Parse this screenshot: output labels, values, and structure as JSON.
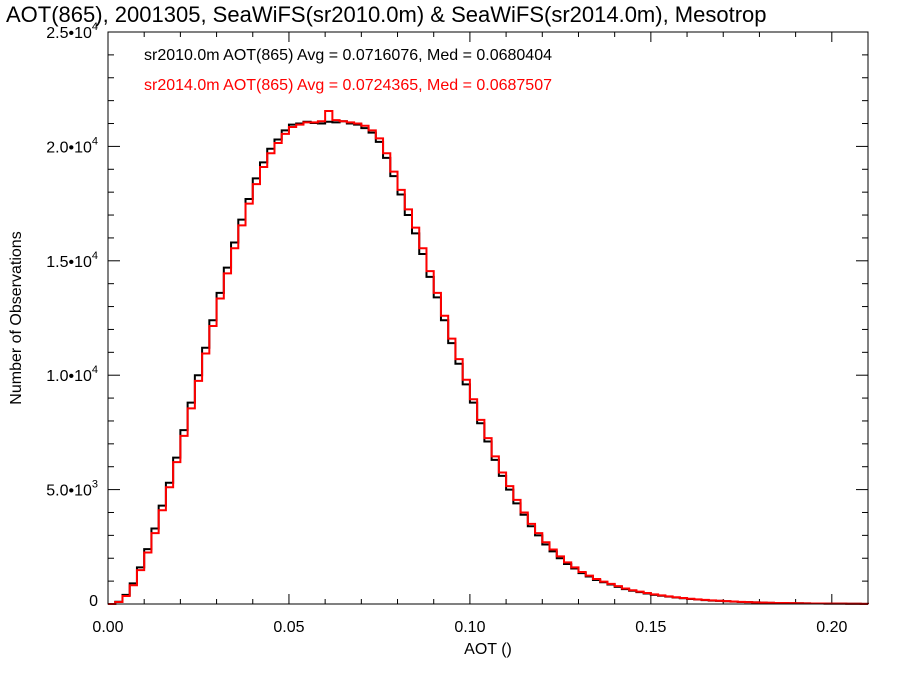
{
  "chart_data": {
    "type": "line",
    "title": "AOT(865), 2001305, SeaWiFS(sr2010.0m) & SeaWiFS(sr2014.0m), Mesotrop",
    "xlabel": "AOT ()",
    "ylabel": "Number of Observations",
    "xlim": [
      0.0,
      0.21
    ],
    "ylim": [
      0,
      25000
    ],
    "xticks": [
      0.0,
      0.05,
      0.1,
      0.15,
      0.2
    ],
    "xtick_labels": [
      "0.00",
      "0.05",
      "0.10",
      "0.15",
      "0.20"
    ],
    "yticks": [
      0,
      5000,
      10000,
      15000,
      20000,
      25000
    ],
    "ytick_labels": [
      {
        "mantissa": "0",
        "exponent": ""
      },
      {
        "mantissa": "5.0•10",
        "exponent": "3"
      },
      {
        "mantissa": "1.0•10",
        "exponent": "4"
      },
      {
        "mantissa": "1.5•10",
        "exponent": "4"
      },
      {
        "mantissa": "2.0•10",
        "exponent": "4"
      },
      {
        "mantissa": "2.5•10",
        "exponent": "4"
      }
    ],
    "grid": false,
    "annotations": [
      "sr2010.0m AOT(865) Avg = 0.0716076, Med = 0.0680404",
      "sr2014.0m AOT(865) Avg = 0.0724365, Med = 0.0687507"
    ],
    "series": [
      {
        "color": "#000000",
        "x": [
          0.0,
          0.002,
          0.004,
          0.006,
          0.008,
          0.01,
          0.012,
          0.014,
          0.016,
          0.018,
          0.02,
          0.022,
          0.024,
          0.026,
          0.028,
          0.03,
          0.032,
          0.034,
          0.036,
          0.038,
          0.04,
          0.042,
          0.044,
          0.046,
          0.048,
          0.05,
          0.052,
          0.054,
          0.056,
          0.058,
          0.06,
          0.062,
          0.064,
          0.066,
          0.068,
          0.07,
          0.072,
          0.074,
          0.076,
          0.078,
          0.08,
          0.082,
          0.084,
          0.086,
          0.088,
          0.09,
          0.092,
          0.094,
          0.096,
          0.098,
          0.1,
          0.102,
          0.104,
          0.106,
          0.108,
          0.11,
          0.112,
          0.114,
          0.116,
          0.118,
          0.12,
          0.122,
          0.124,
          0.126,
          0.128,
          0.13,
          0.132,
          0.134,
          0.136,
          0.138,
          0.14,
          0.142,
          0.144,
          0.146,
          0.148,
          0.15,
          0.152,
          0.154,
          0.156,
          0.158,
          0.16,
          0.162,
          0.164,
          0.166,
          0.168,
          0.17,
          0.172,
          0.174,
          0.176,
          0.178,
          0.18,
          0.182,
          0.184,
          0.186,
          0.188,
          0.19,
          0.192,
          0.194,
          0.196,
          0.198,
          0.2,
          0.202,
          0.204,
          0.206,
          0.208,
          0.21
        ],
        "values": [
          0,
          100,
          400,
          900,
          1600,
          2400,
          3300,
          4300,
          5300,
          6400,
          7600,
          8800,
          10000,
          11200,
          12400,
          13600,
          14700,
          15800,
          16800,
          17700,
          18600,
          19300,
          19900,
          20300,
          20700,
          20950,
          21000,
          21080,
          21020,
          21000,
          21080,
          21050,
          21100,
          21000,
          20950,
          20800,
          20600,
          20200,
          19500,
          18700,
          17900,
          17000,
          16200,
          15300,
          14300,
          13400,
          12400,
          11400,
          10500,
          9600,
          8800,
          7900,
          7100,
          6300,
          5600,
          5000,
          4400,
          3900,
          3400,
          3000,
          2600,
          2300,
          2000,
          1750,
          1550,
          1350,
          1200,
          1050,
          950,
          850,
          750,
          650,
          580,
          520,
          460,
          400,
          360,
          320,
          285,
          250,
          220,
          195,
          170,
          150,
          135,
          120,
          105,
          90,
          80,
          70,
          60,
          50,
          45,
          40,
          35,
          30,
          25,
          22,
          20,
          18,
          16,
          14,
          12,
          10,
          8,
          5
        ]
      },
      {
        "color": "#ff0000",
        "x": [
          0.0,
          0.002,
          0.004,
          0.006,
          0.008,
          0.01,
          0.012,
          0.014,
          0.016,
          0.018,
          0.02,
          0.022,
          0.024,
          0.026,
          0.028,
          0.03,
          0.032,
          0.034,
          0.036,
          0.038,
          0.04,
          0.042,
          0.044,
          0.046,
          0.048,
          0.05,
          0.052,
          0.054,
          0.056,
          0.058,
          0.06,
          0.062,
          0.064,
          0.066,
          0.068,
          0.07,
          0.072,
          0.074,
          0.076,
          0.078,
          0.08,
          0.082,
          0.084,
          0.086,
          0.088,
          0.09,
          0.092,
          0.094,
          0.096,
          0.098,
          0.1,
          0.102,
          0.104,
          0.106,
          0.108,
          0.11,
          0.112,
          0.114,
          0.116,
          0.118,
          0.12,
          0.122,
          0.124,
          0.126,
          0.128,
          0.13,
          0.132,
          0.134,
          0.136,
          0.138,
          0.14,
          0.142,
          0.144,
          0.146,
          0.148,
          0.15,
          0.152,
          0.154,
          0.156,
          0.158,
          0.16,
          0.162,
          0.164,
          0.166,
          0.168,
          0.17,
          0.172,
          0.174,
          0.176,
          0.178,
          0.18,
          0.182,
          0.184,
          0.186,
          0.188,
          0.19,
          0.192,
          0.194,
          0.196,
          0.198,
          0.2,
          0.202,
          0.204,
          0.206,
          0.208,
          0.21
        ],
        "values": [
          0,
          90,
          350,
          820,
          1480,
          2250,
          3100,
          4100,
          5100,
          6200,
          7350,
          8550,
          9750,
          10950,
          12150,
          13350,
          14450,
          15550,
          16550,
          17500,
          18350,
          19100,
          19700,
          20150,
          20550,
          20850,
          20950,
          21050,
          21050,
          21100,
          21550,
          21150,
          21100,
          21050,
          21000,
          20900,
          20700,
          20350,
          19700,
          18900,
          18100,
          17250,
          16450,
          15550,
          14550,
          13600,
          12600,
          11600,
          10700,
          9800,
          8950,
          8050,
          7250,
          6450,
          5750,
          5150,
          4550,
          4000,
          3500,
          3100,
          2700,
          2380,
          2080,
          1820,
          1600,
          1400,
          1240,
          1090,
          980,
          880,
          780,
          680,
          600,
          540,
          480,
          420,
          375,
          335,
          295,
          260,
          230,
          200,
          178,
          158,
          140,
          125,
          108,
          94,
          82,
          72,
          62,
          52,
          46,
          41,
          36,
          31,
          26,
          23,
          20,
          18,
          16,
          14,
          12,
          10,
          8,
          5
        ]
      }
    ]
  }
}
